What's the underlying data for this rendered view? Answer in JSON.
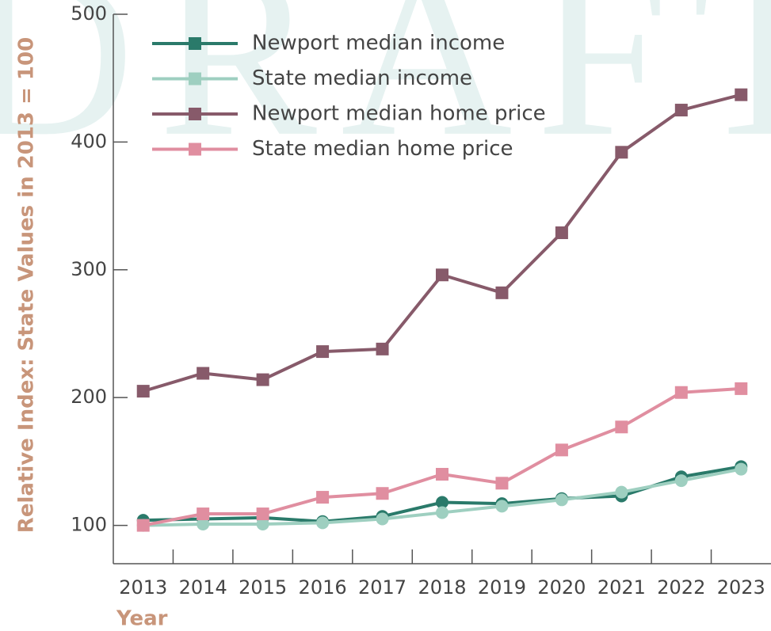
{
  "chart_data": {
    "type": "line",
    "watermark": "DRAFT",
    "ylabel": "Relative Index: State Values in 2013 = 100",
    "xlabel": "Year",
    "categories": [
      "2013",
      "2014",
      "2015",
      "2016",
      "2017",
      "2018",
      "2019",
      "2020",
      "2021",
      "2022",
      "2023"
    ],
    "series": [
      {
        "name": "Newport median income",
        "color": "#2a7a6a",
        "marker": "circle",
        "values": [
          104,
          105,
          106,
          103,
          107,
          118,
          117,
          121,
          123,
          138,
          146
        ]
      },
      {
        "name": "State median income",
        "color": "#9ecfc0",
        "marker": "circle",
        "values": [
          100,
          101,
          101,
          102,
          105,
          110,
          115,
          120,
          126,
          135,
          144
        ]
      },
      {
        "name": "Newport median home price",
        "color": "#875a6a",
        "marker": "square",
        "values": [
          205,
          219,
          214,
          236,
          238,
          296,
          282,
          329,
          392,
          425,
          437
        ]
      },
      {
        "name": "State median home price",
        "color": "#e08ea0",
        "marker": "square",
        "values": [
          100,
          109,
          109,
          122,
          125,
          140,
          133,
          159,
          177,
          204,
          207
        ]
      }
    ],
    "ylim": [
      70,
      500
    ],
    "yticks": [
      100,
      200,
      300,
      400,
      500
    ],
    "legend": "upper left"
  }
}
